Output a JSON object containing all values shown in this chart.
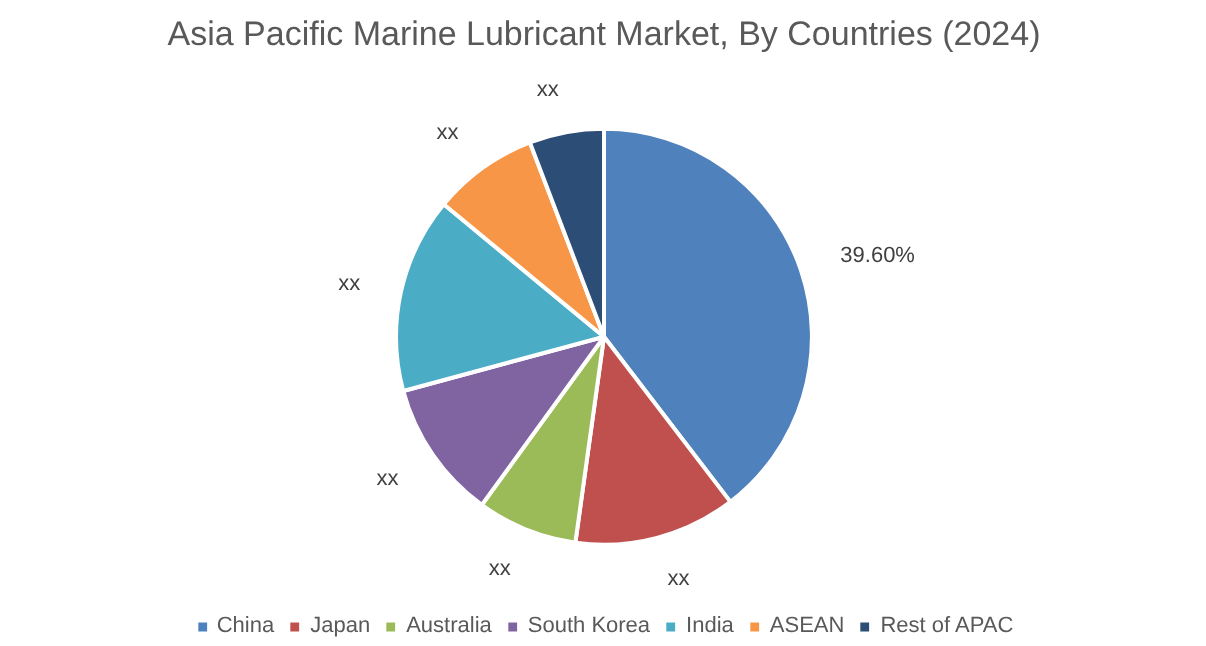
{
  "chart_data": {
    "type": "pie",
    "title": "Asia Pacific Marine Lubricant Market, By Countries (2024)",
    "categories": [
      "China",
      "Japan",
      "Australia",
      "South Korea",
      "India",
      "ASEAN",
      "Rest of APAC"
    ],
    "values": [
      39.6,
      12.6,
      7.8,
      10.8,
      15.2,
      8.2,
      5.8
    ],
    "colors": [
      "#4f81bd",
      "#c0504d",
      "#9bbb59",
      "#8064a2",
      "#4bacc6",
      "#f79646",
      "#2c4d75"
    ],
    "value_labels": [
      "39.60%",
      "xx",
      "xx",
      "xx",
      "xx",
      "xx",
      "xx"
    ],
    "legend": "bottom"
  }
}
